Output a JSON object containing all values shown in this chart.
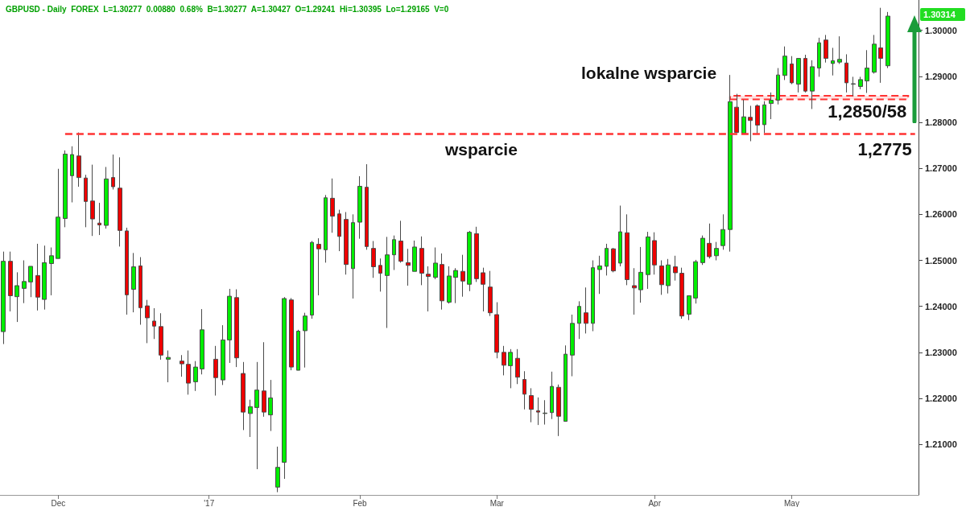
{
  "chart_data": {
    "type": "candlestick",
    "title": "GBPUSD - Daily  FOREX  L=1.30277  0.00880  0.68%  B=1.30277  A=1.30427  O=1.29241  Hi=1.30395  Lo=1.29165  V=0",
    "categories": [
      null,
      null,
      null,
      null,
      null,
      null,
      null,
      null,
      "Dec",
      null,
      null,
      null,
      null,
      null,
      null,
      null,
      null,
      null,
      null,
      null,
      null,
      null,
      null,
      null,
      null,
      null,
      null,
      null,
      null,
      null,
      "'17",
      null,
      null,
      null,
      null,
      null,
      null,
      null,
      null,
      null,
      null,
      null,
      null,
      null,
      null,
      null,
      null,
      null,
      null,
      null,
      null,
      null,
      "Feb",
      null,
      null,
      null,
      null,
      null,
      null,
      null,
      null,
      null,
      null,
      null,
      null,
      null,
      null,
      null,
      null,
      null,
      null,
      null,
      "Mar",
      null,
      null,
      null,
      null,
      null,
      null,
      null,
      null,
      null,
      null,
      null,
      null,
      null,
      null,
      null,
      null,
      null,
      null,
      null,
      null,
      null,
      null,
      "Apr",
      null,
      null,
      null,
      null,
      null,
      null,
      null,
      null,
      null,
      null,
      null,
      null,
      null,
      null,
      null,
      null,
      null,
      null,
      null,
      "May",
      null,
      null,
      null,
      null,
      null,
      null,
      null,
      null,
      null,
      null,
      null,
      null,
      null,
      null,
      null,
      null,
      null,
      null
    ],
    "ohlc": [
      [
        1.2345,
        1.2519,
        1.2318,
        1.2498
      ],
      [
        1.2498,
        1.2519,
        1.2389,
        1.2423
      ],
      [
        1.2421,
        1.2474,
        1.2366,
        1.2445
      ],
      [
        1.2439,
        1.25,
        1.2407,
        1.2454
      ],
      [
        1.2453,
        1.2487,
        1.242,
        1.2487
      ],
      [
        1.2467,
        1.2536,
        1.2391,
        1.242
      ],
      [
        1.2415,
        1.2532,
        1.2393,
        1.2495
      ],
      [
        1.2493,
        1.2528,
        1.2424,
        1.251
      ],
      [
        1.2504,
        1.2699,
        1.2504,
        1.2594
      ],
      [
        1.2591,
        1.2739,
        1.2572,
        1.2731
      ],
      [
        1.2684,
        1.2748,
        1.2626,
        1.273
      ],
      [
        1.2727,
        1.2778,
        1.266,
        1.268
      ],
      [
        1.2679,
        1.2686,
        1.2572,
        1.2628
      ],
      [
        1.2629,
        1.2708,
        1.2553,
        1.259
      ],
      [
        1.2581,
        1.2625,
        1.2555,
        1.2577
      ],
      [
        1.2576,
        1.2703,
        1.2569,
        1.2677
      ],
      [
        1.268,
        1.273,
        1.2654,
        1.266
      ],
      [
        1.2657,
        1.2724,
        1.253,
        1.2565
      ],
      [
        1.2564,
        1.2571,
        1.2382,
        1.2425
      ],
      [
        1.2437,
        1.2516,
        1.2387,
        1.2486
      ],
      [
        1.2488,
        1.2507,
        1.236,
        1.2397
      ],
      [
        1.2401,
        1.2414,
        1.232,
        1.2375
      ],
      [
        1.2368,
        1.2396,
        1.2329,
        1.2357
      ],
      [
        1.2356,
        1.2385,
        1.2284,
        1.2294
      ],
      [
        1.2285,
        1.2304,
        1.2235,
        1.2289
      ],
      null,
      [
        1.2281,
        1.2294,
        1.2247,
        1.2275
      ],
      [
        1.2274,
        1.2304,
        1.2208,
        1.2233
      ],
      [
        1.2236,
        1.2281,
        1.2216,
        1.2268
      ],
      [
        1.2264,
        1.2394,
        1.2252,
        1.2349
      ],
      null,
      [
        1.2285,
        1.2314,
        1.2206,
        1.2245
      ],
      [
        1.224,
        1.2359,
        1.2229,
        1.2327
      ],
      [
        1.2327,
        1.2438,
        1.2277,
        1.2422
      ],
      [
        1.2419,
        1.2437,
        1.2268,
        1.2288
      ],
      [
        1.2254,
        1.2279,
        1.2131,
        1.217
      ],
      [
        1.2167,
        1.2197,
        1.2116,
        1.2182
      ],
      [
        1.218,
        1.2279,
        1.2046,
        1.2218
      ],
      [
        1.2216,
        1.2322,
        1.216,
        1.217
      ],
      [
        1.2164,
        1.224,
        1.2129,
        1.2201
      ],
      [
        1.2007,
        1.2095,
        1.1996,
        1.205
      ],
      [
        1.2061,
        1.242,
        1.2025,
        1.2417
      ],
      [
        1.2414,
        1.2418,
        1.2261,
        1.2268
      ],
      [
        1.2261,
        1.2349,
        1.2261,
        1.2346
      ],
      [
        1.2347,
        1.2386,
        1.2267,
        1.2379
      ],
      [
        1.2381,
        1.2542,
        1.2373,
        1.2539
      ],
      [
        1.2535,
        1.2548,
        1.2424,
        1.2525
      ],
      [
        1.2523,
        1.2642,
        1.2495,
        1.2636
      ],
      [
        1.2635,
        1.2678,
        1.256,
        1.2596
      ],
      [
        1.2601,
        1.261,
        1.252,
        1.2552
      ],
      [
        1.2589,
        1.2605,
        1.2469,
        1.2491
      ],
      [
        1.2482,
        1.26,
        1.2417,
        1.2582
      ],
      [
        1.2583,
        1.2683,
        1.2547,
        1.2661
      ],
      [
        1.2659,
        1.2709,
        1.2523,
        1.253
      ],
      [
        1.2526,
        1.2542,
        1.2462,
        1.2486
      ],
      [
        1.2489,
        1.2504,
        1.2432,
        1.2472
      ],
      [
        1.2467,
        1.2551,
        1.2353,
        1.2512
      ],
      [
        1.2512,
        1.2554,
        1.2479,
        1.2545
      ],
      [
        1.2542,
        1.2586,
        1.2495,
        1.2498
      ],
      [
        1.2495,
        1.2525,
        1.2445,
        1.2489
      ],
      [
        1.2476,
        1.2543,
        1.2476,
        1.2529
      ],
      [
        1.2526,
        1.2552,
        1.2446,
        1.2472
      ],
      [
        1.247,
        1.2487,
        1.2389,
        1.2465
      ],
      [
        1.2463,
        1.2528,
        1.2459,
        1.2494
      ],
      [
        1.2491,
        1.2515,
        1.2393,
        1.2412
      ],
      [
        1.2409,
        1.2487,
        1.2406,
        1.2466
      ],
      [
        1.2463,
        1.2483,
        1.2407,
        1.2478
      ],
      [
        1.2476,
        1.2512,
        1.2421,
        1.2455
      ],
      [
        1.2448,
        1.2564,
        1.2433,
        1.2561
      ],
      [
        1.2558,
        1.2573,
        1.2453,
        1.246
      ],
      [
        1.2473,
        1.2484,
        1.2389,
        1.2448
      ],
      [
        1.2442,
        1.2477,
        1.2379,
        1.2386
      ],
      [
        1.2382,
        1.2409,
        1.2287,
        1.23
      ],
      [
        1.23,
        1.2314,
        1.225,
        1.2272
      ],
      [
        1.2271,
        1.2307,
        1.2222,
        1.23
      ],
      [
        1.2287,
        1.2307,
        1.2231,
        1.2246
      ],
      [
        1.2241,
        1.2259,
        1.2176,
        1.2209
      ],
      [
        1.2206,
        1.2222,
        1.2148,
        1.2176
      ],
      [
        1.2173,
        1.2202,
        1.2142,
        1.217
      ],
      [
        1.2167,
        1.2196,
        1.2143,
        1.2168
      ],
      [
        1.2169,
        1.2258,
        1.2155,
        1.2226
      ],
      [
        1.2224,
        1.223,
        1.2118,
        1.2161
      ],
      [
        1.215,
        1.2315,
        1.215,
        1.2296
      ],
      [
        1.2294,
        1.2382,
        1.2248,
        1.2363
      ],
      [
        1.2363,
        1.2411,
        1.2329,
        1.24
      ],
      [
        1.2386,
        1.2441,
        1.2341,
        1.2363
      ],
      [
        1.2363,
        1.25,
        1.2346,
        1.2484
      ],
      [
        1.248,
        1.251,
        1.2427,
        1.2488
      ],
      [
        1.2487,
        1.2536,
        1.2467,
        1.2526
      ],
      [
        1.2525,
        1.2527,
        1.2474,
        1.2477
      ],
      [
        1.2494,
        1.2619,
        1.2487,
        1.2562
      ],
      [
        1.256,
        1.26,
        1.2446,
        1.2458
      ],
      [
        1.2445,
        1.2483,
        1.2382,
        1.244
      ],
      [
        1.2436,
        1.2529,
        1.2408,
        1.2474
      ],
      [
        1.2469,
        1.2562,
        1.2438,
        1.2551
      ],
      [
        1.2543,
        1.2561,
        1.2469,
        1.249
      ],
      [
        1.2488,
        1.25,
        1.2425,
        1.2447
      ],
      [
        1.2445,
        1.2503,
        1.2428,
        1.249
      ],
      [
        1.2486,
        1.251,
        1.2456,
        1.2473
      ],
      [
        1.2472,
        1.2484,
        1.2373,
        1.2379
      ],
      [
        1.2383,
        1.2423,
        1.237,
        1.2423
      ],
      [
        1.2418,
        1.2501,
        1.2406,
        1.2497
      ],
      [
        1.2495,
        1.2554,
        1.249,
        1.2548
      ],
      [
        1.2537,
        1.258,
        1.2504,
        1.2508
      ],
      [
        1.251,
        1.254,
        1.25,
        1.2526
      ],
      [
        1.2532,
        1.26,
        1.2523,
        1.2567
      ],
      [
        1.2567,
        1.2903,
        1.2519,
        1.2845
      ],
      [
        1.2833,
        1.2862,
        1.2777,
        1.2778
      ],
      [
        1.2776,
        1.2849,
        1.2775,
        1.2812
      ],
      [
        1.2811,
        1.2836,
        1.2759,
        1.2804
      ],
      [
        1.2836,
        1.2839,
        1.2776,
        1.2794
      ],
      [
        1.2795,
        1.2846,
        1.2777,
        1.2838
      ],
      [
        1.2841,
        1.2865,
        1.2807,
        1.2848
      ],
      [
        1.2848,
        1.2918,
        1.2839,
        1.2903
      ],
      [
        1.2902,
        1.2965,
        1.2892,
        1.2944
      ],
      [
        1.2927,
        1.2944,
        1.2883,
        1.2886
      ],
      [
        1.2883,
        1.2939,
        1.2865,
        1.2939
      ],
      [
        1.2939,
        1.2947,
        1.2865,
        1.2868
      ],
      [
        1.2868,
        1.2935,
        1.2829,
        1.2921
      ],
      [
        1.2918,
        1.2984,
        1.2899,
        1.2973
      ],
      [
        1.2979,
        1.299,
        1.293,
        1.2939
      ],
      [
        1.2928,
        1.2962,
        1.2902,
        1.2934
      ],
      [
        1.2931,
        1.2987,
        1.2927,
        1.2937
      ],
      [
        1.2929,
        1.2948,
        1.2865,
        1.2886
      ],
      [
        1.2883,
        1.2899,
        1.2857,
        1.2884
      ],
      [
        1.2878,
        1.2899,
        1.2872,
        1.2893
      ],
      [
        1.289,
        1.2957,
        1.2864,
        1.2918
      ],
      [
        1.2909,
        1.299,
        1.2906,
        1.297
      ],
      [
        1.2962,
        1.3049,
        1.2886,
        1.2939
      ],
      [
        1.2923,
        1.304,
        1.2918,
        1.3031
      ],
      null,
      null,
      null,
      null
    ],
    "ylim": [
      1.199,
      1.3066
    ],
    "yticks": [
      {
        "value": 1.21,
        "label": "1.21000"
      },
      {
        "value": 1.22,
        "label": "1.22000"
      },
      {
        "value": 1.23,
        "label": "1.23000"
      },
      {
        "value": 1.24,
        "label": "1.24000"
      },
      {
        "value": 1.25,
        "label": "1.25000"
      },
      {
        "value": 1.26,
        "label": "1.26000"
      },
      {
        "value": 1.27,
        "label": "1.27000"
      },
      {
        "value": 1.28,
        "label": "1.28000"
      },
      {
        "value": 1.29,
        "label": "1.29000"
      },
      {
        "value": 1.3,
        "label": "1.30000"
      }
    ],
    "ref_lines": [
      {
        "axis": "y",
        "value": 1.2775,
        "label": "1,2775",
        "color": "#ff3333",
        "line_style": "dashed"
      }
    ],
    "bands": [
      {
        "axis": "y",
        "from": 1.285,
        "to": 1.2858,
        "label": "1,2850/58",
        "color": "#ff3333"
      }
    ],
    "annotations": [
      "wsparcie",
      "lokalne wsparcie",
      "1.30314"
    ]
  }
}
